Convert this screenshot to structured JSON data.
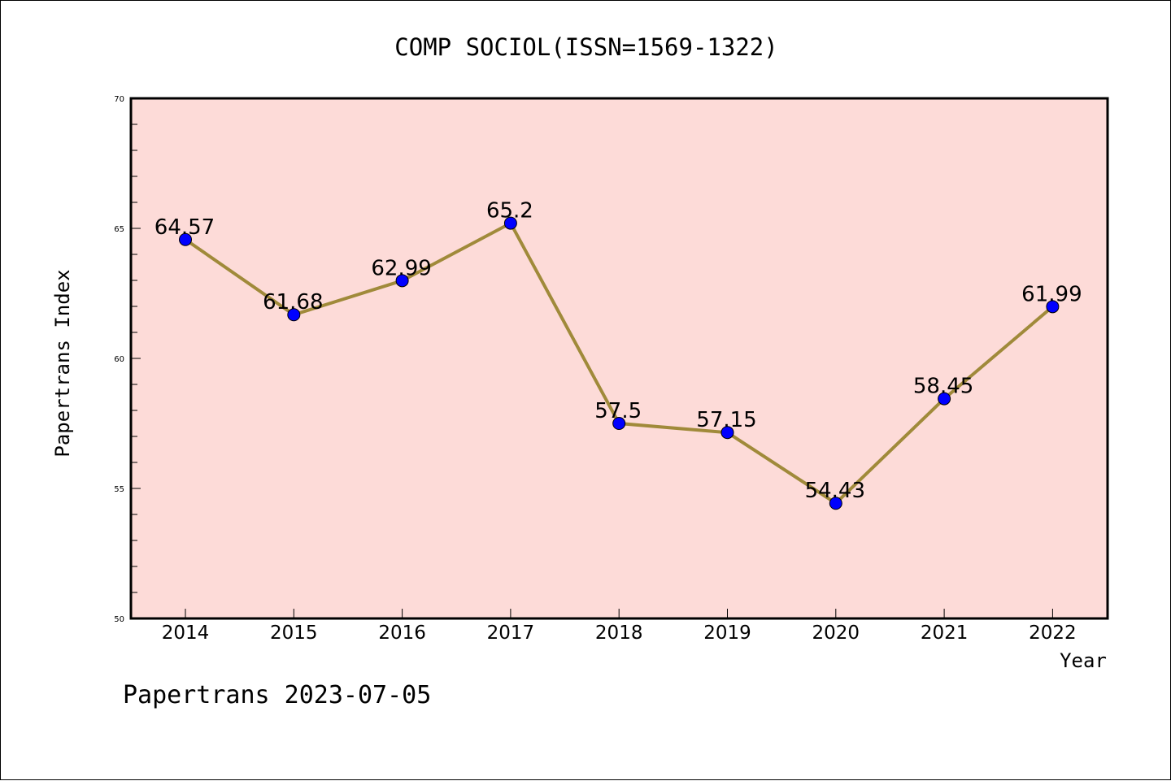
{
  "chart_data": {
    "type": "line",
    "title": "COMP SOCIOL(ISSN=1569-1322)",
    "xlabel": "Year",
    "ylabel": "Papertrans Index",
    "categories": [
      "2014",
      "2015",
      "2016",
      "2017",
      "2018",
      "2019",
      "2020",
      "2021",
      "2022"
    ],
    "series": [
      {
        "values": [
          64.57,
          61.68,
          62.99,
          65.2,
          57.5,
          57.15,
          54.43,
          58.45,
          61.99
        ],
        "data_labels": [
          "64.57",
          "61.68",
          "62.99",
          "65.2",
          "57.5",
          "57.15",
          "54.43",
          "58.45",
          "61.99"
        ]
      }
    ],
    "ylim": [
      50,
      70
    ],
    "yticks": [
      "50",
      "55",
      "60",
      "65",
      "70"
    ],
    "grid": false,
    "colors": {
      "plot_background": "#fddbd8",
      "line": "#a08a3a",
      "marker": "#0000ff",
      "frame": "#000000"
    }
  },
  "footer": "Papertrans 2023-07-05"
}
